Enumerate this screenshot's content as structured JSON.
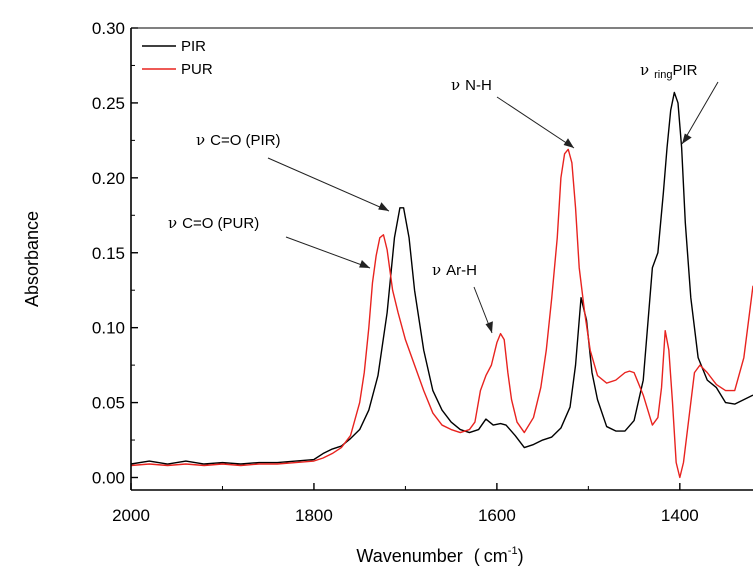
{
  "chart_data": {
    "type": "line",
    "title": "",
    "xlabel": "Wavenumber",
    "xlabel_unit": "cm",
    "xlabel_unit_exp": "-1",
    "ylabel": "Absorbance",
    "xlim": [
      2000,
      1320
    ],
    "ylim": [
      -0.01,
      0.3
    ],
    "x_reversed": true,
    "x_ticks": [
      2000,
      1800,
      1600,
      1400
    ],
    "y_ticks": [
      0.0,
      0.05,
      0.1,
      0.15,
      0.2,
      0.25,
      0.3
    ],
    "y_tick_labels": [
      "0.00",
      "0.05",
      "0.10",
      "0.15",
      "0.20",
      "0.25",
      "0.30"
    ],
    "grid": false,
    "legend_position": "top-left",
    "series": [
      {
        "name": "PIR",
        "color": "#000000",
        "x": [
          2000,
          1980,
          1960,
          1940,
          1920,
          1900,
          1880,
          1860,
          1840,
          1820,
          1800,
          1790,
          1780,
          1770,
          1760,
          1750,
          1740,
          1730,
          1720,
          1712,
          1706,
          1702,
          1696,
          1690,
          1680,
          1670,
          1660,
          1650,
          1640,
          1630,
          1620,
          1612,
          1604,
          1596,
          1590,
          1580,
          1570,
          1560,
          1550,
          1540,
          1530,
          1520,
          1514,
          1508,
          1502,
          1496,
          1490,
          1480,
          1470,
          1460,
          1450,
          1440,
          1430,
          1424,
          1418,
          1414,
          1410,
          1406,
          1402,
          1398,
          1394,
          1388,
          1380,
          1370,
          1360,
          1350,
          1340,
          1330,
          1320
        ],
        "y": [
          0.009,
          0.011,
          0.009,
          0.011,
          0.009,
          0.01,
          0.009,
          0.01,
          0.01,
          0.011,
          0.012,
          0.016,
          0.019,
          0.021,
          0.026,
          0.032,
          0.045,
          0.068,
          0.11,
          0.16,
          0.18,
          0.18,
          0.16,
          0.125,
          0.085,
          0.058,
          0.045,
          0.037,
          0.032,
          0.03,
          0.032,
          0.039,
          0.035,
          0.036,
          0.035,
          0.028,
          0.02,
          0.022,
          0.025,
          0.027,
          0.033,
          0.047,
          0.075,
          0.12,
          0.105,
          0.07,
          0.052,
          0.034,
          0.031,
          0.031,
          0.038,
          0.065,
          0.14,
          0.15,
          0.19,
          0.22,
          0.245,
          0.257,
          0.25,
          0.22,
          0.17,
          0.12,
          0.08,
          0.065,
          0.06,
          0.05,
          0.049,
          0.052,
          0.055
        ]
      },
      {
        "name": "PUR",
        "color": "#e8231f",
        "x": [
          2000,
          1980,
          1960,
          1940,
          1920,
          1900,
          1880,
          1860,
          1840,
          1820,
          1800,
          1790,
          1780,
          1770,
          1760,
          1750,
          1745,
          1740,
          1736,
          1732,
          1728,
          1724,
          1720,
          1714,
          1708,
          1700,
          1690,
          1680,
          1670,
          1660,
          1650,
          1640,
          1630,
          1624,
          1618,
          1612,
          1606,
          1600,
          1596,
          1592,
          1588,
          1584,
          1578,
          1570,
          1560,
          1552,
          1546,
          1540,
          1534,
          1530,
          1526,
          1522,
          1518,
          1514,
          1510,
          1504,
          1498,
          1490,
          1480,
          1470,
          1460,
          1455,
          1450,
          1440,
          1430,
          1424,
          1420,
          1416,
          1412,
          1408,
          1404,
          1400,
          1396,
          1390,
          1384,
          1378,
          1370,
          1360,
          1350,
          1340,
          1330,
          1320
        ],
        "y": [
          0.008,
          0.009,
          0.008,
          0.009,
          0.008,
          0.009,
          0.008,
          0.009,
          0.009,
          0.01,
          0.011,
          0.013,
          0.016,
          0.02,
          0.028,
          0.05,
          0.07,
          0.1,
          0.13,
          0.148,
          0.16,
          0.162,
          0.152,
          0.125,
          0.11,
          0.092,
          0.075,
          0.058,
          0.043,
          0.035,
          0.032,
          0.03,
          0.032,
          0.037,
          0.058,
          0.068,
          0.075,
          0.09,
          0.096,
          0.092,
          0.07,
          0.052,
          0.037,
          0.03,
          0.04,
          0.06,
          0.085,
          0.12,
          0.16,
          0.2,
          0.216,
          0.219,
          0.21,
          0.18,
          0.14,
          0.11,
          0.085,
          0.068,
          0.063,
          0.065,
          0.07,
          0.071,
          0.07,
          0.055,
          0.035,
          0.04,
          0.06,
          0.098,
          0.085,
          0.05,
          0.01,
          0.0,
          0.01,
          0.04,
          0.07,
          0.075,
          0.07,
          0.062,
          0.058,
          0.058,
          0.08,
          0.128
        ]
      }
    ],
    "annotations": [
      {
        "greek": "ν",
        "text": "C=O (PIR)",
        "subscript": "",
        "suffix": ""
      },
      {
        "greek": "ν",
        "text": "C=O (PUR)",
        "subscript": "",
        "suffix": ""
      },
      {
        "greek": "ν",
        "text": "Ar-H",
        "subscript": "",
        "suffix": ""
      },
      {
        "greek": "ν",
        "text": "N-H",
        "subscript": "",
        "suffix": ""
      },
      {
        "greek": "ν",
        "text": "",
        "subscript": "ring",
        "suffix": "PIR"
      }
    ]
  }
}
